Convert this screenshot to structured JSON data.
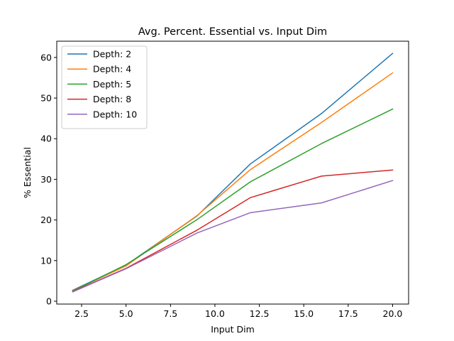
{
  "chart_data": {
    "type": "line",
    "title": "Avg. Percent. Essential vs. Input Dim",
    "xlabel": "Input Dim",
    "ylabel": "% Essential",
    "xlim": [
      1.1,
      20.9
    ],
    "ylim": [
      -0.7,
      64.0
    ],
    "xticks": [
      2.5,
      5.0,
      7.5,
      10.0,
      12.5,
      15.0,
      17.5,
      20.0
    ],
    "yticks": [
      0,
      10,
      20,
      30,
      40,
      50,
      60
    ],
    "grid": false,
    "legend_position": "top-left",
    "x": [
      2,
      5,
      9,
      12,
      16,
      20
    ],
    "series": [
      {
        "name": "Depth: 2",
        "color": "#1f77b4",
        "values": [
          2.7,
          8.9,
          21.0,
          33.8,
          46.2,
          61.0
        ]
      },
      {
        "name": "Depth: 4",
        "color": "#ff7f0e",
        "values": [
          2.6,
          8.7,
          21.1,
          32.4,
          44.0,
          56.2
        ]
      },
      {
        "name": "Depth: 5",
        "color": "#2ca02c",
        "values": [
          2.5,
          9.0,
          20.1,
          29.4,
          38.8,
          47.3
        ]
      },
      {
        "name": "Depth: 8",
        "color": "#d62728",
        "values": [
          2.4,
          8.1,
          17.5,
          25.5,
          30.8,
          32.3
        ]
      },
      {
        "name": "Depth: 10",
        "color": "#9467bd",
        "values": [
          2.3,
          8.0,
          16.8,
          21.8,
          24.2,
          29.7
        ]
      }
    ]
  }
}
